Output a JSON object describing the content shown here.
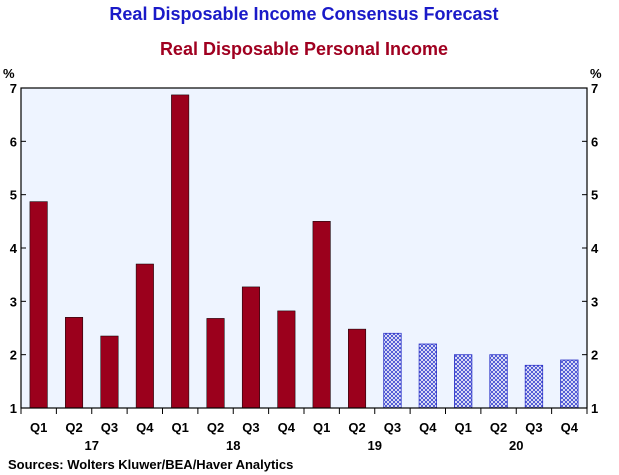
{
  "chart_data": {
    "type": "bar",
    "title": "Real Disposable Income Consensus Forecast",
    "subtitle": "Real Disposable Personal Income",
    "ylabel_left": "%",
    "ylabel_right": "%",
    "ylim": [
      1,
      7
    ],
    "yticks": [
      "1",
      "2",
      "3",
      "4",
      "5",
      "6",
      "7"
    ],
    "categories": [
      "Q1",
      "Q2",
      "Q3",
      "Q4",
      "Q1",
      "Q2",
      "Q3",
      "Q4",
      "Q1",
      "Q2",
      "Q3",
      "Q4",
      "Q1",
      "Q2",
      "Q3",
      "Q4"
    ],
    "year_labels": [
      {
        "label": "17",
        "start": 0,
        "end": 3
      },
      {
        "label": "18",
        "start": 4,
        "end": 7
      },
      {
        "label": "19",
        "start": 8,
        "end": 11
      },
      {
        "label": "20",
        "start": 12,
        "end": 15
      }
    ],
    "series": [
      {
        "values": [
          4.87,
          2.7,
          2.35,
          3.7,
          6.87,
          2.68,
          3.27,
          2.82,
          4.5,
          2.48,
          null,
          null,
          null,
          null,
          null,
          null
        ],
        "color": "#9B001C",
        "style": "solid"
      },
      {
        "values": [
          null,
          null,
          null,
          null,
          null,
          null,
          null,
          null,
          null,
          null,
          2.4,
          2.2,
          2.0,
          2.0,
          1.8,
          1.9
        ],
        "color": "#2B32C8",
        "style": "hatched"
      }
    ],
    "grid": false,
    "plot_background": "#EEF4FF",
    "title_color": "#1A1AC8",
    "subtitle_color": "#A00020",
    "source": "Sources:   Wolters Kluwer/BEA/Haver Analytics"
  }
}
